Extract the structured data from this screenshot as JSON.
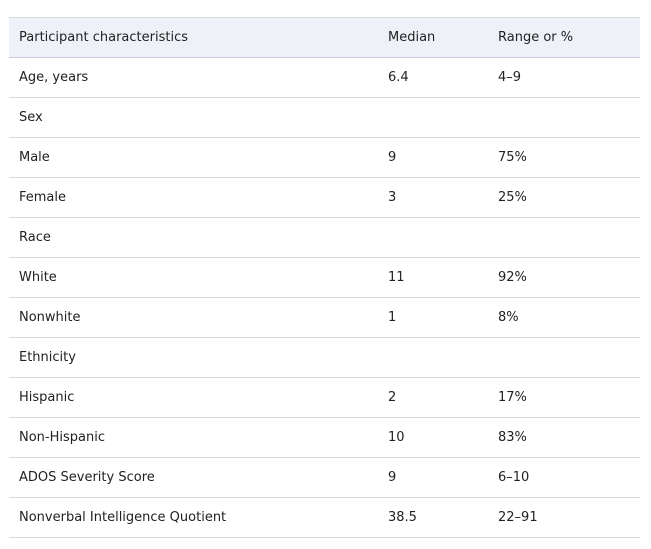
{
  "table": {
    "header": [
      "Participant characteristics",
      "Median",
      "Range or %"
    ],
    "rows": [
      [
        "Age, years",
        "6.4",
        "4–9"
      ],
      [
        "Sex",
        "",
        ""
      ],
      [
        "Male",
        "9",
        "75%"
      ],
      [
        "Female",
        "3",
        "25%"
      ],
      [
        "Race",
        "",
        ""
      ],
      [
        "White",
        "11",
        "92%"
      ],
      [
        "Nonwhite",
        "1",
        "8%"
      ],
      [
        "Ethnicity",
        "",
        ""
      ],
      [
        "Hispanic",
        "2",
        "17%"
      ],
      [
        "Non-Hispanic",
        "10",
        "83%"
      ],
      [
        "ADOS Severity Score",
        "9",
        "6–10"
      ],
      [
        "Nonverbal Intelligence Quotient",
        "38.5",
        "22–91"
      ]
    ]
  }
}
